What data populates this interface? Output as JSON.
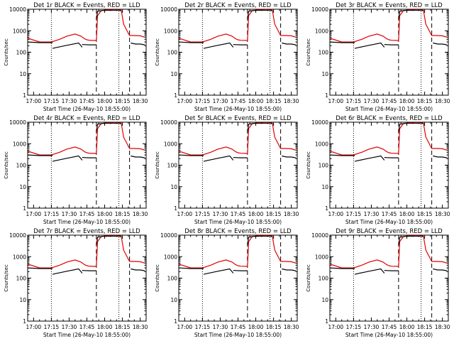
{
  "colors": {
    "events": "#000000",
    "lld": "#e00000",
    "axes": "#000000",
    "background": "#ffffff"
  },
  "chart_data": {
    "type": "line",
    "y_scale": "log",
    "ylim": [
      1,
      10000
    ],
    "yticks": [
      1,
      10,
      100,
      1000,
      10000
    ],
    "ytick_labels": [
      "1",
      "10",
      "100",
      "1000",
      "10000"
    ],
    "ylabel": "Counts/sec",
    "xlabel": "Start Time (26-May-10 18:55:00)",
    "xlim": [
      "16:55",
      "18:35"
    ],
    "xticks": [
      "17:00",
      "17:15",
      "17:30",
      "17:45",
      "18:00",
      "18:15",
      "18:30"
    ],
    "dotted_vlines": [
      "17:15",
      "18:12"
    ],
    "dashed_vlines": [
      "17:53",
      "18:21"
    ],
    "panels": [
      {
        "title": "Det 1r BLACK = Events, RED = LLD"
      },
      {
        "title": "Det 2r BLACK = Events, RED = LLD"
      },
      {
        "title": "Det 3r BLACK = Events, RED = LLD"
      },
      {
        "title": "Det 4r BLACK = Events, RED = LLD"
      },
      {
        "title": "Det 5r BLACK = Events, RED = LLD"
      },
      {
        "title": "Det 6r BLACK = Events, RED = LLD"
      },
      {
        "title": "Det 7r BLACK = Events, RED = LLD"
      },
      {
        "title": "Det 8r BLACK = Events, RED = LLD"
      },
      {
        "title": "Det 9r BLACK = Events, RED = LLD"
      }
    ],
    "series": [
      {
        "name": "LLD",
        "color": "#e00000",
        "x": [
          "16:55",
          "17:05",
          "17:15",
          "17:22",
          "17:28",
          "17:35",
          "17:40",
          "17:43",
          "17:45",
          "17:47",
          "17:53",
          "17:54",
          "17:57",
          "18:02",
          "18:10",
          "18:14",
          "18:16",
          "18:21",
          "18:25",
          "18:30",
          "18:34"
        ],
        "y": [
          450,
          300,
          300,
          400,
          560,
          700,
          560,
          420,
          380,
          360,
          350,
          5000,
          8500,
          9500,
          10000,
          9000,
          2000,
          600,
          600,
          580,
          500
        ]
      },
      {
        "name": "Events",
        "color": "#000000",
        "segments": [
          {
            "x": [
              "16:55",
              "17:05",
              "17:15",
              "17:16"
            ],
            "y": [
              300,
              280,
              280,
              280
            ]
          },
          {
            "x": [
              "17:16",
              "17:18",
              "17:28",
              "17:38",
              "17:40",
              "17:41"
            ],
            "y": [
              150,
              160,
              210,
              270,
              200,
              170
            ]
          },
          {
            "x": [
              "17:41",
              "17:43",
              "17:47",
              "17:53"
            ],
            "y": [
              230,
              225,
              220,
              220
            ]
          },
          {
            "x": [
              "17:53",
              "17:54",
              "17:58",
              "18:05",
              "18:12",
              "18:14"
            ],
            "y": [
              3500,
              8000,
              8800,
              9000,
              9000,
              8500
            ]
          },
          {
            "x": [
              "18:22",
              "18:26",
              "18:30",
              "18:34"
            ],
            "y": [
              270,
              240,
              240,
              220
            ]
          }
        ]
      }
    ]
  }
}
